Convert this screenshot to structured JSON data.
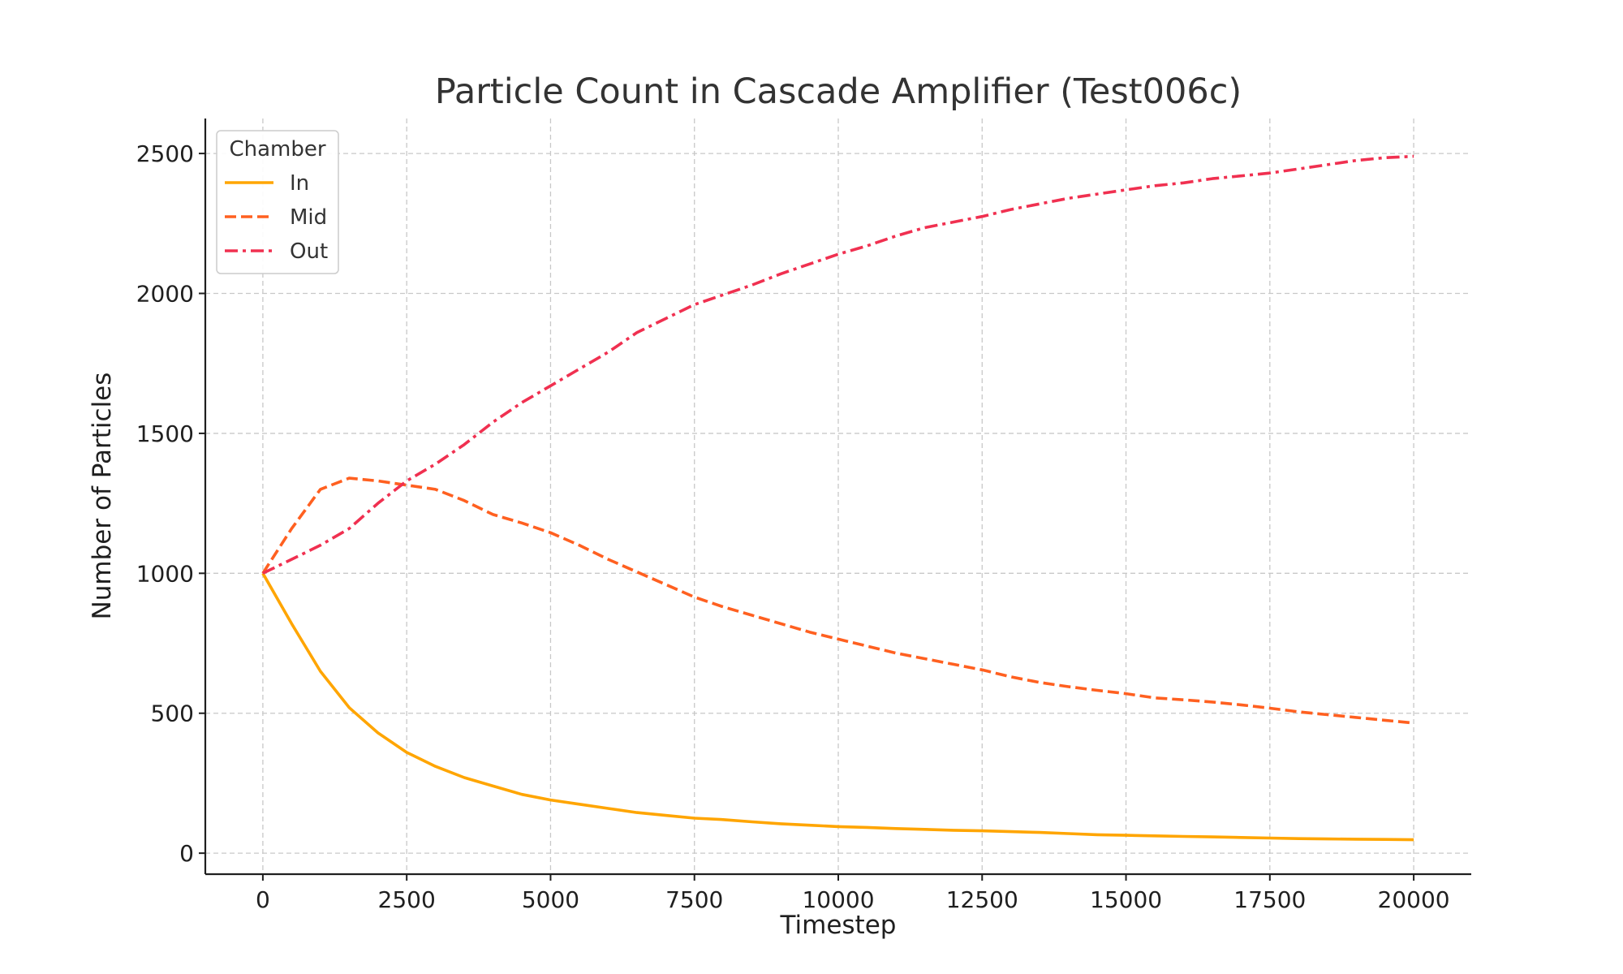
{
  "chart_data": {
    "type": "line",
    "title": "Particle Count in Cascade Amplifier (Test006c)",
    "xlabel": "Timestep",
    "ylabel": "Number of Particles",
    "xlim": [
      -1000,
      21000
    ],
    "ylim": [
      -75,
      2625
    ],
    "xticks": [
      0,
      2500,
      5000,
      7500,
      10000,
      12500,
      15000,
      17500,
      20000
    ],
    "xtick_labels": [
      "0",
      "2500",
      "5000",
      "7500",
      "10000",
      "12500",
      "15000",
      "17500",
      "20000"
    ],
    "yticks": [
      0,
      500,
      1000,
      1500,
      2000,
      2500
    ],
    "ytick_labels": [
      "0",
      "500",
      "1000",
      "1500",
      "2000",
      "2500"
    ],
    "grid": true,
    "legend": {
      "title": "Chamber",
      "position": "upper-left"
    },
    "x": [
      0,
      500,
      1000,
      1500,
      2000,
      2500,
      3000,
      3500,
      4000,
      4500,
      5000,
      5500,
      6000,
      6500,
      7000,
      7500,
      8000,
      8500,
      9000,
      9500,
      10000,
      10500,
      11000,
      11500,
      12000,
      12500,
      13000,
      13500,
      14000,
      14500,
      15000,
      15500,
      16000,
      16500,
      17000,
      17500,
      18000,
      18500,
      19000,
      19500,
      20000
    ],
    "series": [
      {
        "name": "In",
        "color": "#FFA500",
        "style": "solid",
        "values": [
          1000,
          820,
          650,
          520,
          430,
          360,
          310,
          270,
          240,
          210,
          190,
          175,
          160,
          145,
          135,
          125,
          120,
          112,
          105,
          100,
          95,
          92,
          88,
          85,
          82,
          80,
          77,
          74,
          70,
          66,
          64,
          62,
          60,
          58,
          56,
          54,
          52,
          51,
          50,
          49,
          48
        ]
      },
      {
        "name": "Mid",
        "color": "#FF6020",
        "style": "dashed",
        "values": [
          1000,
          1160,
          1300,
          1340,
          1330,
          1315,
          1300,
          1260,
          1210,
          1180,
          1145,
          1100,
          1050,
          1005,
          960,
          915,
          880,
          850,
          820,
          790,
          765,
          740,
          715,
          695,
          675,
          655,
          630,
          610,
          595,
          582,
          570,
          555,
          548,
          540,
          530,
          518,
          505,
          495,
          485,
          475,
          465
        ]
      },
      {
        "name": "Out",
        "color": "#F03050",
        "style": "dashdot",
        "values": [
          1000,
          1050,
          1100,
          1160,
          1250,
          1330,
          1390,
          1460,
          1540,
          1610,
          1670,
          1730,
          1790,
          1860,
          1910,
          1960,
          1995,
          2030,
          2070,
          2105,
          2140,
          2170,
          2205,
          2235,
          2255,
          2275,
          2300,
          2320,
          2340,
          2355,
          2370,
          2385,
          2395,
          2410,
          2420,
          2430,
          2445,
          2460,
          2475,
          2485,
          2490
        ]
      }
    ]
  }
}
